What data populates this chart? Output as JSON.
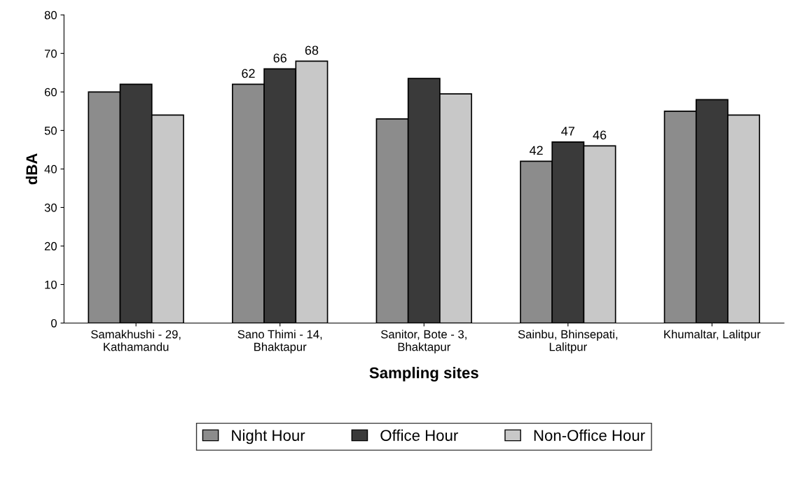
{
  "chart_data": {
    "type": "bar",
    "xlabel": "Sampling sites",
    "ylabel": "dBA",
    "categories": [
      "Samakhushi - 29,\nKathamandu",
      "Sano Thimi - 14,\nBhaktapur",
      "Sanitor, Bote - 3,\nBhaktapur",
      "Sainbu, Bhinsepati,\nLalitpur",
      "Khumaltar, Lalitpur"
    ],
    "series": [
      {
        "name": "Night Hour",
        "color": "#8c8c8c",
        "values": [
          60,
          62,
          53,
          42,
          55
        ],
        "value_labels": [
          null,
          "62",
          null,
          "42",
          null
        ]
      },
      {
        "name": "Office Hour",
        "color": "#3a3a3a",
        "values": [
          62,
          66,
          63.5,
          47,
          58
        ],
        "value_labels": [
          null,
          "66",
          null,
          "47",
          null
        ]
      },
      {
        "name": "Non-Office Hour",
        "color": "#c8c8c8",
        "values": [
          54,
          68,
          59.5,
          46,
          54
        ],
        "value_labels": [
          null,
          "68",
          null,
          "46",
          null
        ]
      }
    ],
    "ylim": [
      0,
      80
    ],
    "yticks": [
      0,
      10,
      20,
      30,
      40,
      50,
      60,
      70,
      80
    ],
    "grid": false,
    "legend": "bottom"
  }
}
